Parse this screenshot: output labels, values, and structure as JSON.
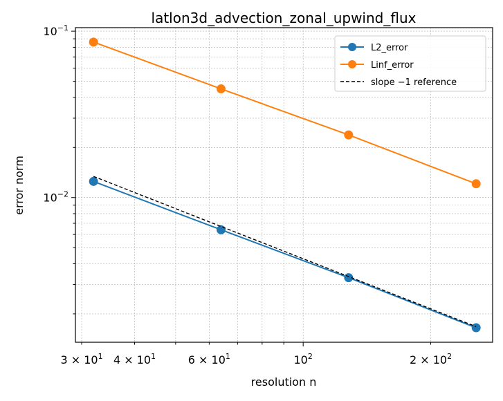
{
  "chart_data": {
    "type": "line",
    "title": "latlon3d_advection_zonal_upwind_flux",
    "xlabel": "resolution n",
    "ylabel": "error norm",
    "xscale": "log",
    "yscale": "log",
    "xlim": [
      29,
      280
    ],
    "ylim": [
      0.00135,
      0.105
    ],
    "grid": true,
    "legend_position": "top-right",
    "x": [
      32,
      64,
      128,
      256
    ],
    "series": [
      {
        "name": "L2_error",
        "color": "#1f77b4",
        "marker": "circle",
        "line_style": "solid",
        "values": [
          0.0125,
          0.0064,
          0.0033,
          0.00165
        ]
      },
      {
        "name": "Linf_error",
        "color": "#ff7f0e",
        "marker": "circle",
        "line_style": "solid",
        "values": [
          0.086,
          0.045,
          0.0238,
          0.0121
        ]
      },
      {
        "name": "slope −1 reference",
        "color": "#000000",
        "marker": "none",
        "line_style": "dashed",
        "values": [
          0.0134,
          0.0067,
          0.00335,
          0.001675
        ]
      }
    ],
    "x_ticks": [
      {
        "value": 30,
        "base": "3 × 10",
        "exp": "1"
      },
      {
        "value": 40,
        "base": "4 × 10",
        "exp": "1"
      },
      {
        "value": 60,
        "base": "6 × 10",
        "exp": "1"
      },
      {
        "value": 100,
        "base": "10",
        "exp": "2"
      },
      {
        "value": 200,
        "base": "2 × 10",
        "exp": "2"
      }
    ],
    "y_ticks": [
      {
        "value": 0.1,
        "base": "10",
        "exp": "−1"
      },
      {
        "value": 0.01,
        "base": "10",
        "exp": "−2"
      }
    ]
  }
}
